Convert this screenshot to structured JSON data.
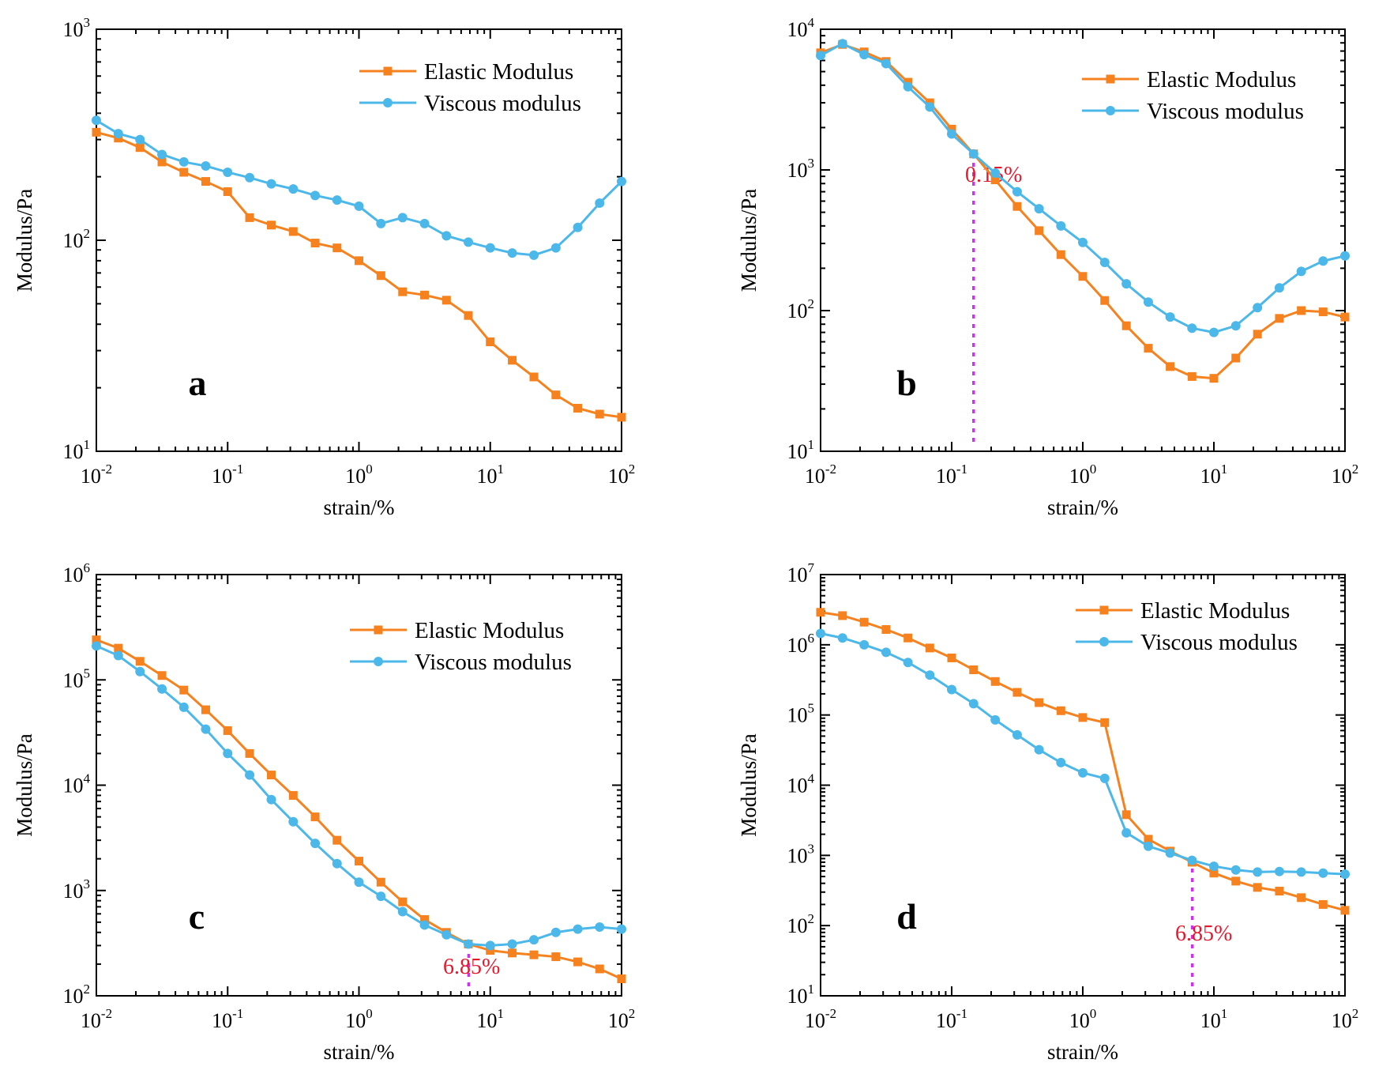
{
  "chart_data": [
    {
      "type": "line",
      "panel_label": "a",
      "xlabel": "strain/%",
      "ylabel": "Modulus/Pa",
      "xscale": "log",
      "yscale": "log",
      "xlim": [
        0.01,
        100
      ],
      "ylim": [
        10,
        1000
      ],
      "x_ticks": [
        {
          "base": "10",
          "exp": "-2",
          "value": 0.01
        },
        {
          "base": "10",
          "exp": "-1",
          "value": 0.1
        },
        {
          "base": "10",
          "exp": "0",
          "value": 1
        },
        {
          "base": "10",
          "exp": "1",
          "value": 10
        },
        {
          "base": "10",
          "exp": "2",
          "value": 100
        }
      ],
      "y_ticks": [
        {
          "base": "10",
          "exp": "1",
          "value": 10
        },
        {
          "base": "10",
          "exp": "2",
          "value": 100
        },
        {
          "base": "10",
          "exp": "3",
          "value": 1000
        }
      ],
      "legend_position": "top-right",
      "x": [
        0.01,
        0.0147,
        0.0215,
        0.0316,
        0.0464,
        0.0681,
        0.1,
        0.147,
        0.215,
        0.316,
        0.464,
        0.681,
        1,
        1.47,
        2.15,
        3.16,
        4.64,
        6.81,
        10,
        14.7,
        21.5,
        31.6,
        46.4,
        68.1,
        100
      ],
      "series": [
        {
          "name": "Elastic Modulus",
          "color": "#f5821f",
          "marker": "square",
          "values": [
            325,
            305,
            275,
            235,
            210,
            190,
            170,
            128,
            118,
            110,
            97,
            92,
            80,
            68,
            57,
            55,
            52,
            44,
            33,
            27,
            22.5,
            18.5,
            16,
            15,
            14.5
          ]
        },
        {
          "name": "Viscous modulus",
          "color": "#4cb8ea",
          "marker": "circle",
          "values": [
            370,
            320,
            300,
            255,
            235,
            225,
            210,
            198,
            185,
            175,
            163,
            155,
            145,
            120,
            128,
            120,
            105,
            98,
            92,
            87,
            85,
            92,
            115,
            150,
            190
          ]
        }
      ],
      "annotations": []
    },
    {
      "type": "line",
      "panel_label": "b",
      "xlabel": "strain/%",
      "ylabel": "Modulus/Pa",
      "xscale": "log",
      "yscale": "log",
      "xlim": [
        0.01,
        100
      ],
      "ylim": [
        10,
        10000
      ],
      "x_ticks": [
        {
          "base": "10",
          "exp": "-2",
          "value": 0.01
        },
        {
          "base": "10",
          "exp": "-1",
          "value": 0.1
        },
        {
          "base": "10",
          "exp": "0",
          "value": 1
        },
        {
          "base": "10",
          "exp": "1",
          "value": 10
        },
        {
          "base": "10",
          "exp": "2",
          "value": 100
        }
      ],
      "y_ticks": [
        {
          "base": "10",
          "exp": "1",
          "value": 10
        },
        {
          "base": "10",
          "exp": "2",
          "value": 100
        },
        {
          "base": "10",
          "exp": "3",
          "value": 1000
        },
        {
          "base": "10",
          "exp": "4",
          "value": 10000
        }
      ],
      "legend_position": "top-right",
      "x": [
        0.01,
        0.0147,
        0.0215,
        0.0316,
        0.0464,
        0.0681,
        0.1,
        0.147,
        0.215,
        0.316,
        0.464,
        0.681,
        1,
        1.47,
        2.15,
        3.16,
        4.64,
        6.81,
        10,
        14.7,
        21.5,
        31.6,
        46.4,
        68.1,
        100
      ],
      "series": [
        {
          "name": "Elastic Modulus",
          "color": "#f5821f",
          "marker": "square",
          "values": [
            6800,
            7800,
            6900,
            5900,
            4200,
            3000,
            1950,
            1300,
            850,
            550,
            370,
            250,
            175,
            118,
            78,
            54,
            40,
            34,
            33,
            46,
            68,
            88,
            100,
            98,
            90
          ]
        },
        {
          "name": "Viscous modulus",
          "color": "#4cb8ea",
          "marker": "circle",
          "values": [
            6500,
            7900,
            6600,
            5700,
            3900,
            2800,
            1800,
            1300,
            950,
            700,
            530,
            400,
            305,
            220,
            155,
            115,
            90,
            75,
            70,
            78,
            105,
            145,
            190,
            225,
            245
          ]
        }
      ],
      "annotations": [
        {
          "label": "0.15%",
          "x": 0.147,
          "y_from": 10,
          "y_to": 1300
        }
      ]
    },
    {
      "type": "line",
      "panel_label": "c",
      "xlabel": "strain/%",
      "ylabel": "Modulus/Pa",
      "xscale": "log",
      "yscale": "log",
      "xlim": [
        0.01,
        100
      ],
      "ylim": [
        100,
        1000000
      ],
      "x_ticks": [
        {
          "base": "10",
          "exp": "-2",
          "value": 0.01
        },
        {
          "base": "10",
          "exp": "-1",
          "value": 0.1
        },
        {
          "base": "10",
          "exp": "0",
          "value": 1
        },
        {
          "base": "10",
          "exp": "1",
          "value": 10
        },
        {
          "base": "10",
          "exp": "2",
          "value": 100
        }
      ],
      "y_ticks": [
        {
          "base": "10",
          "exp": "2",
          "value": 100
        },
        {
          "base": "10",
          "exp": "3",
          "value": 1000
        },
        {
          "base": "10",
          "exp": "4",
          "value": 10000
        },
        {
          "base": "10",
          "exp": "5",
          "value": 100000
        },
        {
          "base": "10",
          "exp": "6",
          "value": 1000000
        }
      ],
      "legend_position": "top-right",
      "x": [
        0.01,
        0.0147,
        0.0215,
        0.0316,
        0.0464,
        0.0681,
        0.1,
        0.147,
        0.215,
        0.316,
        0.464,
        0.681,
        1,
        1.47,
        2.15,
        3.16,
        4.64,
        6.81,
        10,
        14.7,
        21.5,
        31.6,
        46.4,
        68.1,
        100
      ],
      "series": [
        {
          "name": "Elastic Modulus",
          "color": "#f5821f",
          "marker": "square",
          "values": [
            240000,
            200000,
            150000,
            110000,
            80000,
            52000,
            33000,
            20000,
            12500,
            8000,
            5000,
            3000,
            1900,
            1200,
            780,
            530,
            400,
            310,
            270,
            255,
            245,
            235,
            210,
            180,
            145
          ]
        },
        {
          "name": "Viscous modulus",
          "color": "#4cb8ea",
          "marker": "circle",
          "values": [
            210000,
            170000,
            120000,
            82000,
            55000,
            34000,
            20000,
            12500,
            7300,
            4500,
            2800,
            1800,
            1200,
            880,
            630,
            470,
            380,
            310,
            300,
            310,
            340,
            400,
            430,
            450,
            430
          ]
        }
      ],
      "annotations": [
        {
          "label": "6.85%",
          "x": 6.85,
          "y_from": 100,
          "y_to": 300
        }
      ]
    },
    {
      "type": "line",
      "panel_label": "d",
      "xlabel": "strain/%",
      "ylabel": "Modulus/Pa",
      "xscale": "log",
      "yscale": "log",
      "xlim": [
        0.01,
        100
      ],
      "ylim": [
        10,
        10000000
      ],
      "x_ticks": [
        {
          "base": "10",
          "exp": "-2",
          "value": 0.01
        },
        {
          "base": "10",
          "exp": "-1",
          "value": 0.1
        },
        {
          "base": "10",
          "exp": "0",
          "value": 1
        },
        {
          "base": "10",
          "exp": "1",
          "value": 10
        },
        {
          "base": "10",
          "exp": "2",
          "value": 100
        }
      ],
      "y_ticks": [
        {
          "base": "10",
          "exp": "1",
          "value": 10
        },
        {
          "base": "10",
          "exp": "2",
          "value": 100
        },
        {
          "base": "10",
          "exp": "3",
          "value": 1000
        },
        {
          "base": "10",
          "exp": "4",
          "value": 10000
        },
        {
          "base": "10",
          "exp": "5",
          "value": 100000
        },
        {
          "base": "10",
          "exp": "6",
          "value": 1000000
        },
        {
          "base": "10",
          "exp": "7",
          "value": 10000000
        }
      ],
      "legend_position": "top-right",
      "x": [
        0.01,
        0.0147,
        0.0215,
        0.0316,
        0.0464,
        0.0681,
        0.1,
        0.147,
        0.215,
        0.316,
        0.464,
        0.681,
        1,
        1.47,
        2.15,
        3.16,
        4.64,
        6.81,
        10,
        14.7,
        21.5,
        31.6,
        46.4,
        68.1,
        100
      ],
      "series": [
        {
          "name": "Elastic Modulus",
          "color": "#f5821f",
          "marker": "square",
          "values": [
            2900000,
            2600000,
            2100000,
            1650000,
            1250000,
            900000,
            650000,
            440000,
            300000,
            210000,
            150000,
            115000,
            92000,
            78000,
            3800,
            1700,
            1150,
            800,
            560,
            430,
            350,
            310,
            250,
            200,
            165
          ]
        },
        {
          "name": "Viscous modulus",
          "color": "#4cb8ea",
          "marker": "circle",
          "values": [
            1450000,
            1250000,
            1000000,
            780000,
            560000,
            370000,
            230000,
            145000,
            85000,
            52000,
            32000,
            21000,
            15000,
            12500,
            2100,
            1350,
            1080,
            850,
            700,
            620,
            580,
            590,
            580,
            560,
            540
          ]
        }
      ],
      "annotations": [
        {
          "label": "6.85%",
          "x": 6.85,
          "y_from": 10,
          "y_to": 850
        }
      ]
    }
  ]
}
